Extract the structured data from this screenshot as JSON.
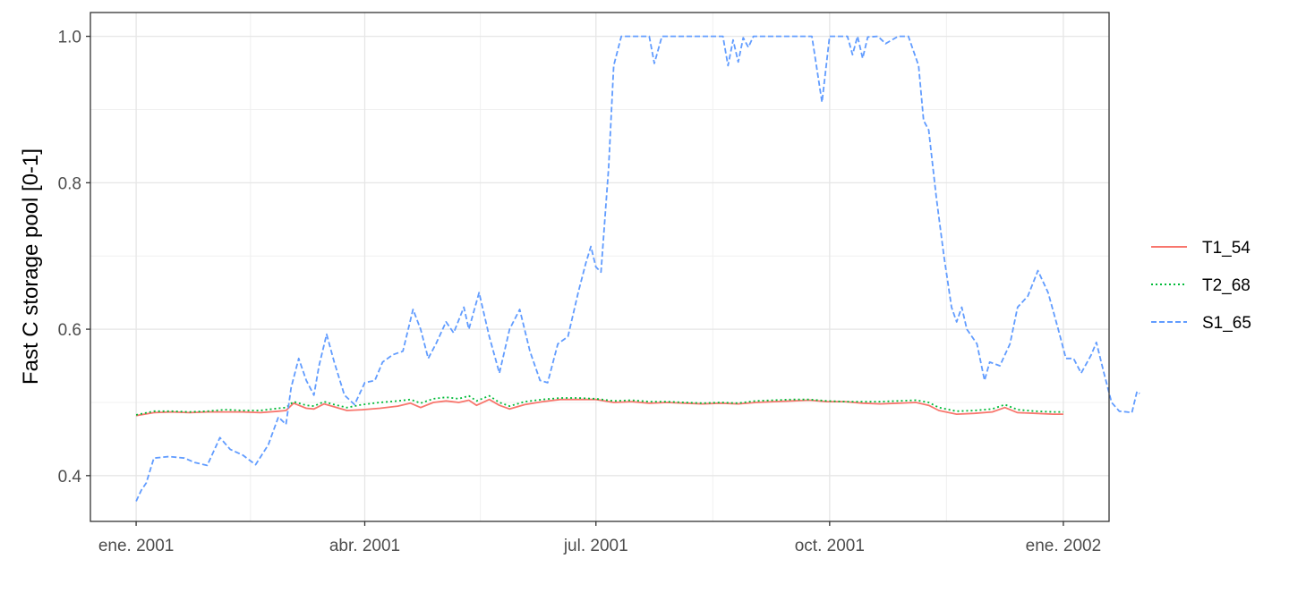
{
  "chart_data": {
    "type": "line",
    "title": "",
    "xlabel": "",
    "ylabel": "Fast C storage pool [0-1]",
    "x_ticks": [
      "ene. 2001",
      "abr. 2001",
      "jul. 2001",
      "oct. 2001",
      "ene. 2002"
    ],
    "x_tick_dates": [
      "2001-01-01",
      "2001-04-01",
      "2001-07-01",
      "2001-10-01",
      "2002-01-01"
    ],
    "y_ticks": [
      "0.4",
      "0.6",
      "0.8",
      "1.0"
    ],
    "xlim": [
      "2000-12-14",
      "2002-01-19"
    ],
    "ylim": [
      0.3375,
      1.0325
    ],
    "grid": true,
    "legend_position": "right",
    "series": [
      {
        "name": "T1_54",
        "color": "#F8766D",
        "dash": "solid",
        "points": [
          [
            "2001-01-01",
            0.482
          ],
          [
            "2001-01-08",
            0.486
          ],
          [
            "2001-01-15",
            0.487
          ],
          [
            "2001-01-22",
            0.486
          ],
          [
            "2001-01-29",
            0.487
          ],
          [
            "2001-02-05",
            0.487
          ],
          [
            "2001-02-12",
            0.487
          ],
          [
            "2001-02-19",
            0.486
          ],
          [
            "2001-02-26",
            0.488
          ],
          [
            "2001-03-01",
            0.489
          ],
          [
            "2001-03-04",
            0.499
          ],
          [
            "2001-03-09",
            0.492
          ],
          [
            "2001-03-12",
            0.491
          ],
          [
            "2001-03-16",
            0.498
          ],
          [
            "2001-03-20",
            0.494
          ],
          [
            "2001-03-25",
            0.489
          ],
          [
            "2001-03-31",
            0.49
          ],
          [
            "2001-04-07",
            0.492
          ],
          [
            "2001-04-14",
            0.495
          ],
          [
            "2001-04-19",
            0.499
          ],
          [
            "2001-04-23",
            0.493
          ],
          [
            "2001-04-28",
            0.5
          ],
          [
            "2001-05-03",
            0.502
          ],
          [
            "2001-05-08",
            0.5
          ],
          [
            "2001-05-12",
            0.503
          ],
          [
            "2001-05-15",
            0.496
          ],
          [
            "2001-05-20",
            0.504
          ],
          [
            "2001-05-24",
            0.496
          ],
          [
            "2001-05-28",
            0.491
          ],
          [
            "2001-06-03",
            0.497
          ],
          [
            "2001-06-10",
            0.501
          ],
          [
            "2001-06-17",
            0.504
          ],
          [
            "2001-06-24",
            0.504
          ],
          [
            "2001-07-01",
            0.504
          ],
          [
            "2001-07-08",
            0.5
          ],
          [
            "2001-07-15",
            0.501
          ],
          [
            "2001-07-22",
            0.499
          ],
          [
            "2001-07-29",
            0.5
          ],
          [
            "2001-08-05",
            0.499
          ],
          [
            "2001-08-12",
            0.498
          ],
          [
            "2001-08-19",
            0.499
          ],
          [
            "2001-08-26",
            0.498
          ],
          [
            "2001-09-02",
            0.5
          ],
          [
            "2001-09-09",
            0.501
          ],
          [
            "2001-09-16",
            0.502
          ],
          [
            "2001-09-23",
            0.503
          ],
          [
            "2001-09-30",
            0.501
          ],
          [
            "2001-10-07",
            0.501
          ],
          [
            "2001-10-14",
            0.499
          ],
          [
            "2001-10-21",
            0.498
          ],
          [
            "2001-10-28",
            0.499
          ],
          [
            "2001-11-04",
            0.5
          ],
          [
            "2001-11-09",
            0.496
          ],
          [
            "2001-11-13",
            0.489
          ],
          [
            "2001-11-20",
            0.484
          ],
          [
            "2001-11-27",
            0.485
          ],
          [
            "2001-12-04",
            0.487
          ],
          [
            "2001-12-09",
            0.493
          ],
          [
            "2001-12-14",
            0.486
          ],
          [
            "2001-12-21",
            0.485
          ],
          [
            "2001-12-28",
            0.484
          ],
          [
            "2002-01-01",
            0.484
          ]
        ]
      },
      {
        "name": "T2_68",
        "color": "#00BA38",
        "dash": "dotted",
        "points": [
          [
            "2001-01-01",
            0.483
          ],
          [
            "2001-01-08",
            0.488
          ],
          [
            "2001-01-15",
            0.488
          ],
          [
            "2001-01-22",
            0.487
          ],
          [
            "2001-01-29",
            0.488
          ],
          [
            "2001-02-05",
            0.49
          ],
          [
            "2001-02-12",
            0.489
          ],
          [
            "2001-02-19",
            0.489
          ],
          [
            "2001-02-26",
            0.492
          ],
          [
            "2001-03-01",
            0.493
          ],
          [
            "2001-03-04",
            0.501
          ],
          [
            "2001-03-09",
            0.496
          ],
          [
            "2001-03-12",
            0.495
          ],
          [
            "2001-03-16",
            0.501
          ],
          [
            "2001-03-20",
            0.497
          ],
          [
            "2001-03-25",
            0.493
          ],
          [
            "2001-03-31",
            0.497
          ],
          [
            "2001-04-07",
            0.5
          ],
          [
            "2001-04-14",
            0.502
          ],
          [
            "2001-04-19",
            0.504
          ],
          [
            "2001-04-23",
            0.499
          ],
          [
            "2001-04-28",
            0.505
          ],
          [
            "2001-05-03",
            0.507
          ],
          [
            "2001-05-08",
            0.505
          ],
          [
            "2001-05-12",
            0.509
          ],
          [
            "2001-05-15",
            0.502
          ],
          [
            "2001-05-20",
            0.509
          ],
          [
            "2001-05-24",
            0.5
          ],
          [
            "2001-05-28",
            0.495
          ],
          [
            "2001-06-03",
            0.501
          ],
          [
            "2001-06-10",
            0.504
          ],
          [
            "2001-06-17",
            0.506
          ],
          [
            "2001-06-24",
            0.506
          ],
          [
            "2001-07-01",
            0.505
          ],
          [
            "2001-07-08",
            0.502
          ],
          [
            "2001-07-15",
            0.503
          ],
          [
            "2001-07-22",
            0.501
          ],
          [
            "2001-07-29",
            0.501
          ],
          [
            "2001-08-05",
            0.5
          ],
          [
            "2001-08-12",
            0.499
          ],
          [
            "2001-08-19",
            0.5
          ],
          [
            "2001-08-26",
            0.499
          ],
          [
            "2001-09-02",
            0.502
          ],
          [
            "2001-09-09",
            0.503
          ],
          [
            "2001-09-16",
            0.504
          ],
          [
            "2001-09-23",
            0.504
          ],
          [
            "2001-09-30",
            0.502
          ],
          [
            "2001-10-07",
            0.501
          ],
          [
            "2001-10-14",
            0.501
          ],
          [
            "2001-10-21",
            0.501
          ],
          [
            "2001-10-28",
            0.502
          ],
          [
            "2001-11-04",
            0.503
          ],
          [
            "2001-11-09",
            0.5
          ],
          [
            "2001-11-13",
            0.493
          ],
          [
            "2001-11-20",
            0.488
          ],
          [
            "2001-11-27",
            0.489
          ],
          [
            "2001-12-04",
            0.491
          ],
          [
            "2001-12-09",
            0.497
          ],
          [
            "2001-12-14",
            0.49
          ],
          [
            "2001-12-21",
            0.488
          ],
          [
            "2001-12-28",
            0.487
          ],
          [
            "2002-01-01",
            0.487
          ]
        ]
      },
      {
        "name": "S1_65",
        "color": "#619CFF",
        "dash": "dashed",
        "points": [
          [
            "2001-01-01",
            0.365
          ],
          [
            "2001-01-03",
            0.38
          ],
          [
            "2001-01-05",
            0.39
          ],
          [
            "2001-01-08",
            0.424
          ],
          [
            "2001-01-14",
            0.426
          ],
          [
            "2001-01-20",
            0.424
          ],
          [
            "2001-01-24",
            0.418
          ],
          [
            "2001-01-29",
            0.414
          ],
          [
            "2001-02-03",
            0.452
          ],
          [
            "2001-02-07",
            0.436
          ],
          [
            "2001-02-12",
            0.428
          ],
          [
            "2001-02-17",
            0.415
          ],
          [
            "2001-02-22",
            0.442
          ],
          [
            "2001-02-26",
            0.48
          ],
          [
            "2001-03-01",
            0.47
          ],
          [
            "2001-03-03",
            0.52
          ],
          [
            "2001-03-06",
            0.56
          ],
          [
            "2001-03-09",
            0.53
          ],
          [
            "2001-03-12",
            0.51
          ],
          [
            "2001-03-14",
            0.55
          ],
          [
            "2001-03-17",
            0.593
          ],
          [
            "2001-03-20",
            0.555
          ],
          [
            "2001-03-24",
            0.51
          ],
          [
            "2001-03-28",
            0.497
          ],
          [
            "2001-04-01",
            0.527
          ],
          [
            "2001-04-05",
            0.53
          ],
          [
            "2001-04-08",
            0.555
          ],
          [
            "2001-04-12",
            0.565
          ],
          [
            "2001-04-16",
            0.57
          ],
          [
            "2001-04-20",
            0.627
          ],
          [
            "2001-04-23",
            0.6
          ],
          [
            "2001-04-26",
            0.56
          ],
          [
            "2001-04-29",
            0.58
          ],
          [
            "2001-05-03",
            0.61
          ],
          [
            "2001-05-06",
            0.595
          ],
          [
            "2001-05-10",
            0.63
          ],
          [
            "2001-05-12",
            0.6
          ],
          [
            "2001-05-16",
            0.65
          ],
          [
            "2001-05-20",
            0.59
          ],
          [
            "2001-05-24",
            0.54
          ],
          [
            "2001-05-28",
            0.6
          ],
          [
            "2001-06-01",
            0.627
          ],
          [
            "2001-06-05",
            0.57
          ],
          [
            "2001-06-09",
            0.53
          ],
          [
            "2001-06-12",
            0.527
          ],
          [
            "2001-06-16",
            0.58
          ],
          [
            "2001-06-20",
            0.59
          ],
          [
            "2001-06-24",
            0.65
          ],
          [
            "2001-06-27",
            0.69
          ],
          [
            "2001-06-29",
            0.713
          ],
          [
            "2001-07-01",
            0.685
          ],
          [
            "2001-07-03",
            0.678
          ],
          [
            "2001-07-06",
            0.82
          ],
          [
            "2001-07-08",
            0.96
          ],
          [
            "2001-07-11",
            1.0
          ],
          [
            "2001-07-22",
            1.0
          ],
          [
            "2001-07-24",
            0.963
          ],
          [
            "2001-07-27",
            1.0
          ],
          [
            "2001-08-20",
            1.0
          ],
          [
            "2001-08-22",
            0.96
          ],
          [
            "2001-08-24",
            0.995
          ],
          [
            "2001-08-26",
            0.965
          ],
          [
            "2001-08-28",
            0.998
          ],
          [
            "2001-08-30",
            0.985
          ],
          [
            "2001-09-01",
            1.0
          ],
          [
            "2001-09-24",
            1.0
          ],
          [
            "2001-09-28",
            0.91
          ],
          [
            "2001-10-01",
            1.0
          ],
          [
            "2001-10-08",
            1.0
          ],
          [
            "2001-10-10",
            0.975
          ],
          [
            "2001-10-12",
            1.0
          ],
          [
            "2001-10-14",
            0.97
          ],
          [
            "2001-10-16",
            0.999
          ],
          [
            "2001-10-20",
            1.0
          ],
          [
            "2001-10-23",
            0.99
          ],
          [
            "2001-10-28",
            1.0
          ],
          [
            "2001-11-01",
            1.0
          ],
          [
            "2001-11-05",
            0.96
          ],
          [
            "2001-11-07",
            0.885
          ],
          [
            "2001-11-09",
            0.872
          ],
          [
            "2001-11-12",
            0.78
          ],
          [
            "2001-11-15",
            0.7
          ],
          [
            "2001-11-18",
            0.63
          ],
          [
            "2001-11-20",
            0.61
          ],
          [
            "2001-11-22",
            0.63
          ],
          [
            "2001-11-24",
            0.6
          ],
          [
            "2001-11-28",
            0.58
          ],
          [
            "2001-12-01",
            0.53
          ],
          [
            "2001-12-03",
            0.555
          ],
          [
            "2001-12-07",
            0.55
          ],
          [
            "2001-12-11",
            0.58
          ],
          [
            "2001-12-14",
            0.63
          ],
          [
            "2001-12-18",
            0.645
          ],
          [
            "2001-12-22",
            0.68
          ],
          [
            "2001-12-26",
            0.65
          ],
          [
            "2001-12-30",
            0.6
          ],
          [
            "2002-01-02",
            0.56
          ],
          [
            "2002-01-05",
            0.56
          ],
          [
            "2002-01-08",
            0.54
          ],
          [
            "2002-01-12",
            0.565
          ],
          [
            "2002-01-14",
            0.582
          ],
          [
            "2002-01-17",
            0.54
          ],
          [
            "2002-01-20",
            0.5
          ],
          [
            "2002-01-23",
            0.488
          ],
          [
            "2002-01-26",
            0.487
          ],
          [
            "2002-01-28",
            0.486
          ],
          [
            "2002-01-30",
            0.515
          ],
          [
            "2002-01-31",
            0.512
          ]
        ]
      }
    ]
  }
}
